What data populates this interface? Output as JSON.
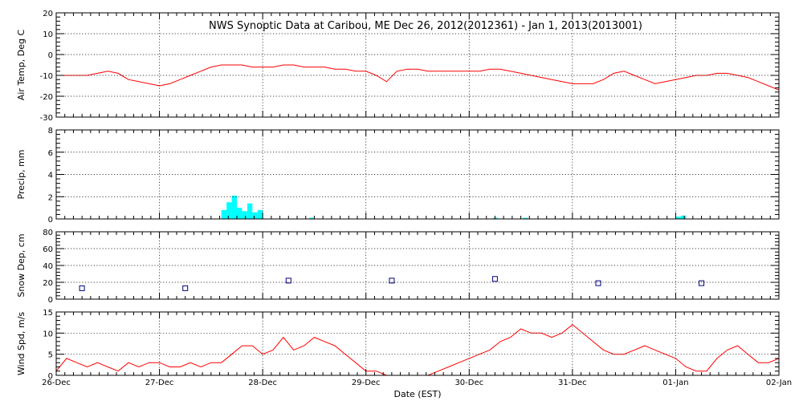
{
  "chart_data": {
    "title": "NWS Synoptic Data at Caribou, ME   Dec 26, 2012(2012361) - Jan  1, 2013(2013001)",
    "xlabel": "Date (EST)",
    "x_ticks": [
      "26-Dec",
      "27-Dec",
      "28-Dec",
      "29-Dec",
      "30-Dec",
      "31-Dec",
      "01-Jan",
      "02-Jan"
    ],
    "x_range_days": [
      0,
      7
    ],
    "grid": true,
    "panels": [
      {
        "id": "air-temp",
        "type": "line",
        "ylabel": "Air Temp, Deg C",
        "ylim": [
          -30,
          20
        ],
        "yticks": [
          -30,
          -20,
          -10,
          0,
          10,
          20
        ],
        "color": "#ff0000",
        "series": [
          {
            "x": [
              0,
              0.1,
              0.2,
              0.3,
              0.4,
              0.5,
              0.6,
              0.7,
              0.8,
              0.9,
              1.0,
              1.1,
              1.2,
              1.3,
              1.4,
              1.5,
              1.6,
              1.7,
              1.8,
              1.9,
              2.0,
              2.1,
              2.2,
              2.3,
              2.4,
              2.5,
              2.6,
              2.7,
              2.8,
              2.9,
              3.0,
              3.1,
              3.2,
              3.3,
              3.4,
              3.5,
              3.6,
              3.7,
              3.8,
              3.9,
              4.0,
              4.1,
              4.2,
              4.3,
              4.4,
              4.5,
              4.6,
              4.7,
              4.8,
              4.9,
              5.0,
              5.1,
              5.2,
              5.3,
              5.4,
              5.5,
              5.6,
              5.7,
              5.8,
              5.9,
              6.0,
              6.1,
              6.2,
              6.3,
              6.4,
              6.5,
              6.6,
              6.7,
              6.8,
              6.9,
              7.0
            ],
            "values": [
              -10,
              -10,
              -10,
              -10,
              -9,
              -8,
              -9,
              -12,
              -13,
              -14,
              -15,
              -14,
              -12,
              -10,
              -8,
              -6,
              -5,
              -5,
              -5,
              -6,
              -6,
              -6,
              -5,
              -5,
              -6,
              -6,
              -6,
              -7,
              -7,
              -8,
              -8,
              -10,
              -13,
              -8,
              -7,
              -7,
              -8,
              -8,
              -8,
              -8,
              -8,
              -8,
              -7,
              -7,
              -8,
              -9,
              -10,
              -11,
              -12,
              -13,
              -14,
              -14,
              -14,
              -12,
              -9,
              -8,
              -10,
              -12,
              -14,
              -13,
              -12,
              -11,
              -10,
              -10,
              -9,
              -9,
              -10,
              -11,
              -13,
              -15,
              -17
            ]
          }
        ]
      },
      {
        "id": "precip",
        "type": "bar",
        "ylabel": "Precip, mm",
        "ylim": [
          0,
          8
        ],
        "yticks": [
          0,
          2,
          4,
          6,
          8
        ],
        "color": "#00ffff",
        "series": [
          {
            "x": [
              1.6,
              1.65,
              1.7,
              1.75,
              1.8,
              1.85,
              1.9,
              1.95,
              2.45,
              4.23,
              4.52,
              6.0,
              6.05
            ],
            "values": [
              0.8,
              1.5,
              2.1,
              1.0,
              0.7,
              1.4,
              0.6,
              0.8,
              0.1,
              0.1,
              0.1,
              0.2,
              0.3
            ],
            "bar_width_days": 0.05
          }
        ]
      },
      {
        "id": "snow-depth",
        "type": "scatter",
        "ylabel": "Snow Dep, cm",
        "ylim": [
          0,
          80
        ],
        "yticks": [
          0,
          20,
          40,
          60,
          80
        ],
        "color": "#000080",
        "series": [
          {
            "x": [
              0.25,
              1.25,
              2.25,
              3.25,
              4.25,
              5.25,
              6.25
            ],
            "values": [
              13,
              13,
              22,
              22,
              24,
              19,
              19
            ]
          }
        ]
      },
      {
        "id": "wind-speed",
        "type": "line",
        "ylabel": "Wind Spd, m/s",
        "ylim": [
          0,
          15
        ],
        "yticks": [
          0,
          5,
          10,
          15
        ],
        "color": "#ff0000",
        "series": [
          {
            "x": [
              0,
              0.1,
              0.2,
              0.3,
              0.4,
              0.5,
              0.6,
              0.7,
              0.8,
              0.9,
              1.0,
              1.1,
              1.2,
              1.3,
              1.4,
              1.5,
              1.6,
              1.7,
              1.8,
              1.9,
              2.0,
              2.1,
              2.2,
              2.3,
              2.4,
              2.5,
              2.6,
              2.7,
              2.8,
              2.9,
              3.0,
              3.1,
              3.2,
              3.3,
              3.4,
              3.5,
              3.6,
              3.7,
              3.8,
              3.9,
              4.0,
              4.1,
              4.2,
              4.3,
              4.4,
              4.5,
              4.6,
              4.7,
              4.8,
              4.9,
              5.0,
              5.1,
              5.2,
              5.3,
              5.4,
              5.5,
              5.6,
              5.7,
              5.8,
              5.9,
              6.0,
              6.1,
              6.2,
              6.3,
              6.4,
              6.5,
              6.6,
              6.7,
              6.8,
              6.9,
              7.0
            ],
            "values": [
              1,
              4,
              3,
              2,
              3,
              2,
              1,
              3,
              2,
              3,
              3,
              2,
              2,
              3,
              2,
              3,
              3,
              5,
              7,
              7,
              5,
              6,
              9,
              6,
              7,
              9,
              8,
              7,
              5,
              3,
              1,
              1,
              0,
              0,
              0,
              0,
              0,
              1,
              2,
              3,
              4,
              5,
              6,
              8,
              9,
              11,
              10,
              10,
              9,
              10,
              12,
              10,
              8,
              6,
              5,
              5,
              6,
              7,
              6,
              5,
              4,
              2,
              1,
              1,
              4,
              6,
              7,
              5,
              3,
              3,
              4
            ]
          }
        ]
      }
    ]
  }
}
